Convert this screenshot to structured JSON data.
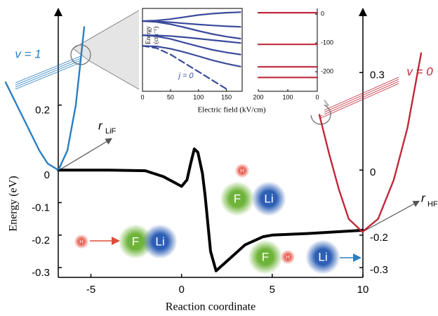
{
  "chart_data": [
    {
      "type": "line",
      "xlabel": "Reaction coordinate",
      "ylabel": "Energy (eV)",
      "x": [
        -6.8,
        -4,
        -2,
        -1,
        0,
        0.3,
        0.5,
        0.7,
        0.9,
        1.15,
        1.3,
        1.6,
        1.9,
        2.5,
        3.5,
        4.5,
        5,
        7,
        10
      ],
      "values": [
        0,
        0,
        -0.002,
        -0.02,
        -0.05,
        -0.03,
        0.02,
        0.065,
        0.055,
        -0.01,
        -0.08,
        -0.25,
        -0.31,
        -0.28,
        -0.23,
        -0.205,
        -0.2,
        -0.195,
        -0.185
      ],
      "color": "#000000",
      "xlim": [
        -6.8,
        10
      ],
      "xticks": [
        -5,
        0,
        5,
        10
      ],
      "ylim": [
        -0.33,
        0.48
      ],
      "yticks": [
        0.2,
        0,
        -0.1,
        -0.2,
        -0.3
      ],
      "y2lim": [
        -0.33,
        0.48
      ],
      "y2ticks": [
        0.3,
        0,
        -0.2,
        -0.3
      ],
      "annotations": [
        "H",
        "F",
        "Li",
        "H",
        "F",
        "Li",
        "F",
        "H",
        "Li"
      ]
    },
    {
      "type": "line",
      "annotation": "v = 1",
      "axis_label": "r",
      "axis_label_subscript": "LiF",
      "x": [
        2.5,
        2.3,
        2.1,
        1.9,
        1.75,
        1.56,
        1.4,
        1.25,
        1.1
      ],
      "values": [
        0.27,
        0.2,
        0.13,
        0.06,
        0.02,
        0,
        0.06,
        0.2,
        0.44
      ],
      "color": "#2b7fc0",
      "xlim": [
        2.5,
        1.1
      ],
      "ylim": [
        -0.33,
        0.48
      ]
    },
    {
      "type": "line",
      "annotation": "v = 0",
      "axis_label": "r",
      "axis_label_subscript": "HF",
      "x": [
        0.7,
        0.75,
        0.8,
        0.85,
        0.92,
        1.0,
        1.08,
        1.15,
        1.22
      ],
      "values": [
        0.17,
        0.05,
        -0.06,
        -0.15,
        -0.19,
        -0.15,
        -0.03,
        0.13,
        0.36
      ],
      "color": "#c0283a",
      "xlim": [
        0.7,
        1.22
      ],
      "ylim": [
        -0.33,
        0.48
      ]
    },
    {
      "type": "line",
      "xlabel": "Electric field (kV/cm)",
      "ylabel": [
        "Energy",
        "(cm⁻¹)"
      ],
      "annotation": "j = 0",
      "x": [
        0,
        25,
        50,
        75,
        100,
        125,
        150,
        175
      ],
      "xlim": [
        0,
        178
      ],
      "xticks": [
        0,
        50,
        100,
        150
      ],
      "ylim": [
        -268,
        20
      ],
      "series": [
        {
          "color": "#3a4a9c",
          "values": [
            -24,
            -22,
            -17,
            -10,
            -3,
            2,
            5,
            7
          ]
        },
        {
          "color": "#3a4a9c",
          "values": [
            -24,
            -25,
            -28,
            -32,
            -36,
            -39,
            -42,
            -44
          ]
        },
        {
          "color": "#3a4a9c",
          "values": [
            -24,
            -27,
            -35,
            -46,
            -58,
            -69,
            -78,
            -85
          ]
        },
        {
          "color": "#3a4a9c",
          "values": [
            -73,
            -74,
            -76,
            -80,
            -85,
            -90,
            -95,
            -100
          ]
        },
        {
          "color": "#3a4a9c",
          "values": [
            -73,
            -77,
            -86,
            -99,
            -112,
            -124,
            -133,
            -140
          ]
        },
        {
          "color": "#3a4a9c",
          "values": [
            -110,
            -112,
            -120,
            -132,
            -146,
            -160,
            -172,
            -182
          ]
        },
        {
          "color": "#3a4a9c",
          "dashed": true,
          "values": [
            -110,
            -118,
            -140,
            -170,
            -200,
            -230,
            -260,
            null
          ]
        }
      ]
    },
    {
      "type": "line",
      "x": [
        200,
        0
      ],
      "xlim": [
        200,
        0
      ],
      "xticks": [
        200,
        100,
        0
      ],
      "ylim": [
        -268,
        20
      ],
      "y2ticks": [
        0,
        -100,
        -200
      ],
      "series": [
        {
          "color": "#c0283a",
          "values": [
            5,
            5
          ]
        },
        {
          "color": "#c0283a",
          "values": [
            -105,
            -105
          ]
        },
        {
          "color": "#c0283a",
          "values": [
            -183,
            -183
          ]
        },
        {
          "color": "#c0283a",
          "values": [
            -220,
            -220
          ]
        }
      ]
    }
  ]
}
